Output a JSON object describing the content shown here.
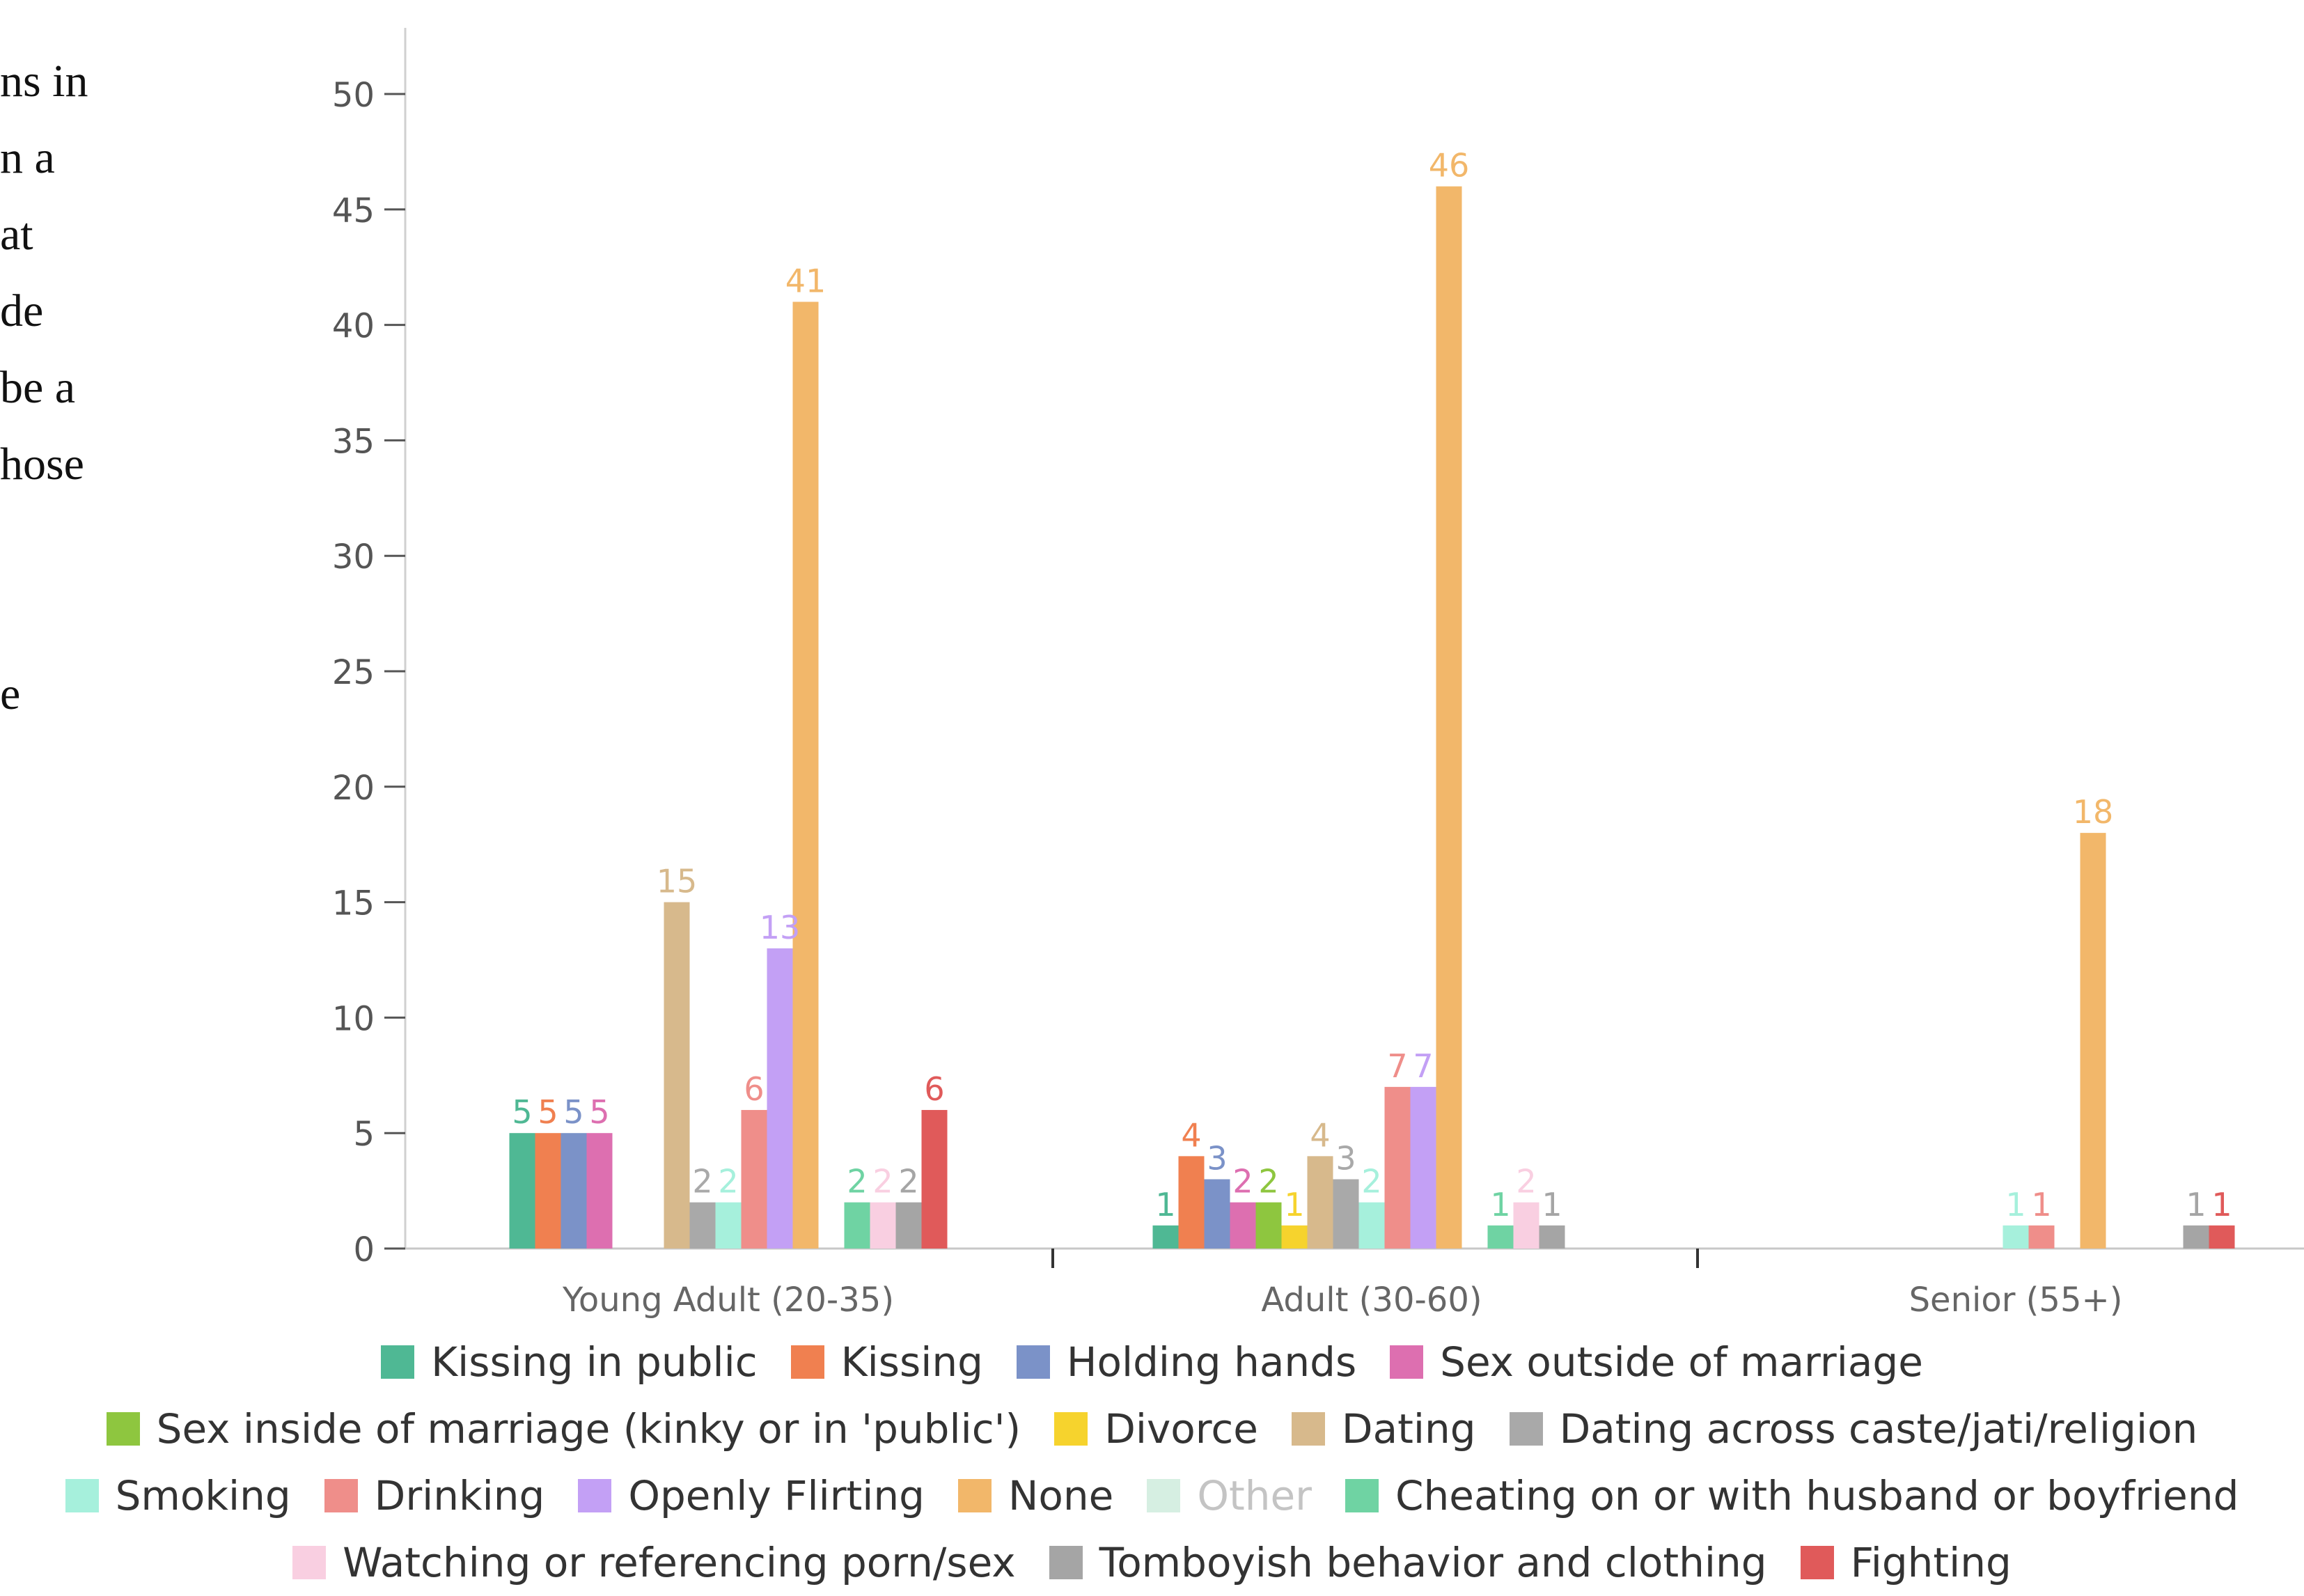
{
  "side_text": [
    "ns in",
    "n a",
    "at",
    "de",
    "be a",
    "hose",
    "",
    "",
    "e"
  ],
  "chart_data": {
    "type": "bar",
    "title": "",
    "xlabel": "",
    "ylabel": "",
    "ylim": [
      0,
      52
    ],
    "yticks": [
      0,
      5,
      10,
      15,
      20,
      25,
      30,
      35,
      40,
      45,
      50
    ],
    "categories": [
      "Young Adult (20-35)",
      "Adult (30-60)",
      "Senior (55+)"
    ],
    "grid": false,
    "legend_position": "bottom",
    "series": [
      {
        "name": "Kissing in public",
        "color": "#4fb894",
        "values": [
          5,
          1,
          0
        ]
      },
      {
        "name": "Kissing",
        "color": "#f08050",
        "values": [
          5,
          4,
          0
        ]
      },
      {
        "name": "Holding hands",
        "color": "#7b92c8",
        "values": [
          5,
          3,
          0
        ]
      },
      {
        "name": "Sex outside of marriage",
        "color": "#dd6fb0",
        "values": [
          5,
          2,
          0
        ]
      },
      {
        "name": "Sex inside of marriage (kinky or in 'public')",
        "color": "#8ec63f",
        "values": [
          0,
          2,
          0
        ]
      },
      {
        "name": "Divorce",
        "color": "#f6d32d",
        "values": [
          0,
          1,
          0
        ]
      },
      {
        "name": "Dating",
        "color": "#d7b98c",
        "values": [
          15,
          4,
          0
        ]
      },
      {
        "name": "Dating across caste/jati/religion",
        "color": "#a9a9a9",
        "values": [
          2,
          3,
          0
        ]
      },
      {
        "name": "Smoking",
        "color": "#a6f0dc",
        "values": [
          2,
          2,
          1
        ]
      },
      {
        "name": "Drinking",
        "color": "#ef8e8a",
        "values": [
          6,
          7,
          1
        ]
      },
      {
        "name": "Openly Flirting",
        "color": "#c3a0f5",
        "values": [
          13,
          7,
          0
        ]
      },
      {
        "name": "None",
        "color": "#f2b76a",
        "values": [
          41,
          46,
          18
        ]
      },
      {
        "name": "Other",
        "color": "#d6efe2",
        "values": [
          0,
          0,
          0
        ]
      },
      {
        "name": "Cheating on or with husband or boyfriend",
        "color": "#6fd3a3",
        "values": [
          2,
          1,
          0
        ]
      },
      {
        "name": "Watching or referencing porn/sex",
        "color": "#f9cfe1",
        "values": [
          2,
          2,
          0
        ]
      },
      {
        "name": "Tomboyish behavior and clothing",
        "color": "#a5a5a5",
        "values": [
          2,
          1,
          1
        ]
      },
      {
        "name": "Fighting",
        "color": "#e05a5a",
        "values": [
          6,
          0,
          1
        ]
      }
    ],
    "legend_rows": [
      [
        0,
        1,
        2,
        3
      ],
      [
        4,
        5,
        6,
        7
      ],
      [
        8,
        9,
        10,
        11,
        12,
        13
      ],
      [
        14,
        15,
        16
      ]
    ]
  }
}
